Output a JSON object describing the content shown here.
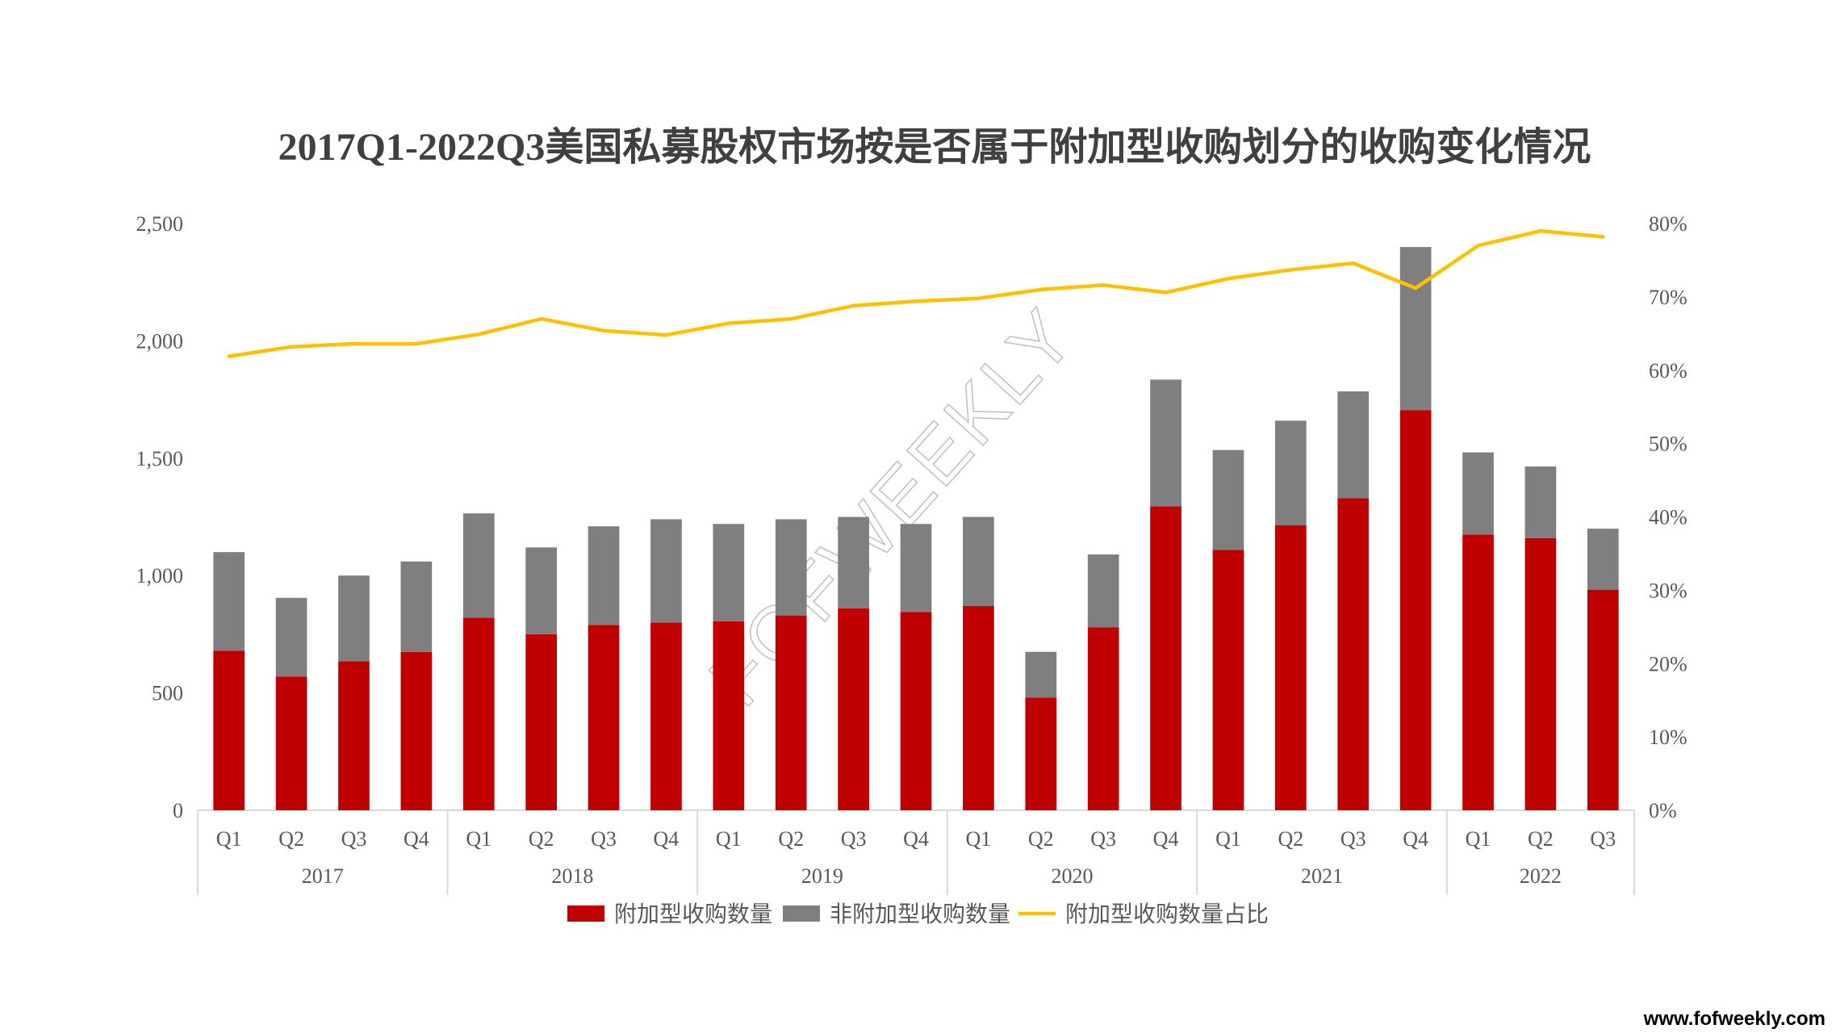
{
  "watermark": "FOFWEEKLY",
  "site": "www.fofweekly.com",
  "colors": {
    "addon": "#c00000",
    "non_addon": "#7f7f7f",
    "share": "#ffc000",
    "axis": "#d9d9d9",
    "text": "#595959",
    "title": "#404040"
  },
  "chart_data": {
    "type": "bar",
    "stacked": true,
    "title": "2017Q1-2022Q3美国私募股权市场按是否属于附加型收购划分的收购变化情况",
    "categories": [
      "Q1",
      "Q2",
      "Q3",
      "Q4",
      "Q1",
      "Q2",
      "Q3",
      "Q4",
      "Q1",
      "Q2",
      "Q3",
      "Q4",
      "Q1",
      "Q2",
      "Q3",
      "Q4",
      "Q1",
      "Q2",
      "Q3",
      "Q4",
      "Q1",
      "Q2",
      "Q3"
    ],
    "groups": [
      {
        "label": "2017",
        "count": 4
      },
      {
        "label": "2018",
        "count": 4
      },
      {
        "label": "2019",
        "count": 4
      },
      {
        "label": "2020",
        "count": 4
      },
      {
        "label": "2021",
        "count": 4
      },
      {
        "label": "2022",
        "count": 3
      }
    ],
    "series": [
      {
        "name": "附加型收购数量",
        "axis": "left",
        "type": "bar",
        "color": "#c00000",
        "values": [
          680,
          570,
          635,
          675,
          820,
          750,
          790,
          800,
          805,
          830,
          860,
          845,
          870,
          480,
          780,
          1295,
          1110,
          1215,
          1330,
          1705,
          1175,
          1160,
          940
        ]
      },
      {
        "name": "非附加型收购数量",
        "axis": "left",
        "type": "bar",
        "color": "#7f7f7f",
        "values": [
          420,
          335,
          365,
          385,
          445,
          370,
          420,
          440,
          415,
          410,
          390,
          375,
          380,
          195,
          310,
          540,
          425,
          445,
          455,
          695,
          350,
          305,
          260
        ]
      },
      {
        "name": "附加型收购数量占比",
        "axis": "right",
        "type": "line",
        "color": "#ffc000",
        "values": [
          0.619,
          0.632,
          0.636,
          0.636,
          0.649,
          0.67,
          0.654,
          0.648,
          0.664,
          0.67,
          0.688,
          0.694,
          0.698,
          0.71,
          0.716,
          0.706,
          0.725,
          0.737,
          0.746,
          0.712,
          0.77,
          0.79,
          0.782
        ]
      }
    ],
    "y_left": {
      "min": 0,
      "max": 2500,
      "ticks": [
        0,
        500,
        1000,
        1500,
        2000,
        2500
      ],
      "tick_labels": [
        "0",
        "500",
        "1,000",
        "1,500",
        "2,000",
        "2,500"
      ]
    },
    "y_right": {
      "min": 0,
      "max": 0.8,
      "ticks": [
        0,
        0.1,
        0.2,
        0.3,
        0.4,
        0.5,
        0.6,
        0.7,
        0.8
      ],
      "tick_labels": [
        "0%",
        "10%",
        "20%",
        "30%",
        "40%",
        "50%",
        "60%",
        "70%",
        "80%"
      ]
    },
    "grid": false,
    "legend": "bottom"
  }
}
